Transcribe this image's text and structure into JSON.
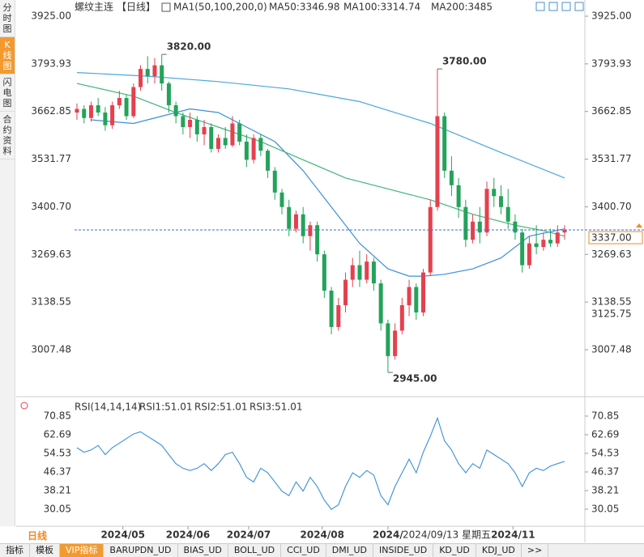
{
  "sidebar_tabs": [
    "分时图",
    "K线图",
    "闪电图",
    "合约资料"
  ],
  "period_label": "日线",
  "tabs": [
    "指标",
    "模板",
    "VIP指标",
    "BARUPDN_UD",
    "BIAS_UD",
    "BOLL_UD",
    "CCI_UD",
    "DMI_UD",
    "INSIDE_UD",
    "KD_UD",
    "KDJ_UD",
    ">>"
  ],
  "chart_data": [
    {
      "type": "candlestick",
      "title": "螺纹主连",
      "period": "【日线】",
      "indicator": "MA1(50,100,200,0)",
      "up_color": "#e5404f",
      "down_color": "#23a35a",
      "ylim": [
        2889.4,
        3929.5
      ],
      "yticks": [
        {
          "value": 3925,
          "label": "3925.00"
        },
        3793.93,
        3662.85,
        3531.77,
        {
          "value": 3400.7,
          "label": "3400.70"
        },
        3269.63,
        3138.55,
        3007.48
      ],
      "xlim": [
        -1,
        73
      ],
      "xticks": [
        {
          "value": 6.5,
          "label": "2024/05"
        },
        {
          "value": 15.7,
          "label": "2024/06"
        },
        {
          "value": 24.3,
          "label": "2024/07"
        },
        {
          "value": 34.7,
          "label": "2024/08"
        },
        {
          "value": 44,
          "label": "2024/"
        },
        {
          "value": 61.7,
          "label": "2024/11"
        }
      ],
      "ohlc": [
        [
          3660,
          3685,
          3640,
          3670
        ],
        [
          3670,
          3680,
          3630,
          3645
        ],
        [
          3645,
          3690,
          3635,
          3680
        ],
        [
          3680,
          3700,
          3650,
          3660
        ],
        [
          3660,
          3675,
          3610,
          3625
        ],
        [
          3625,
          3690,
          3615,
          3680
        ],
        [
          3680,
          3720,
          3670,
          3700
        ],
        [
          3700,
          3710,
          3640,
          3650
        ],
        [
          3650,
          3740,
          3645,
          3730
        ],
        [
          3730,
          3790,
          3720,
          3780
        ],
        [
          3780,
          3815,
          3740,
          3760
        ],
        [
          3760,
          3810,
          3740,
          3790
        ],
        [
          3790,
          3820,
          3720,
          3740
        ],
        [
          3740,
          3745,
          3660,
          3680
        ],
        [
          3680,
          3690,
          3630,
          3650
        ],
        [
          3650,
          3660,
          3600,
          3620
        ],
        [
          3620,
          3660,
          3590,
          3640
        ],
        [
          3640,
          3650,
          3580,
          3600
        ],
        [
          3600,
          3640,
          3570,
          3620
        ],
        [
          3620,
          3630,
          3550,
          3560
        ],
        [
          3560,
          3600,
          3550,
          3590
        ],
        [
          3590,
          3620,
          3560,
          3570
        ],
        [
          3570,
          3650,
          3565,
          3630
        ],
        [
          3630,
          3640,
          3570,
          3580
        ],
        [
          3580,
          3600,
          3510,
          3530
        ],
        [
          3530,
          3600,
          3520,
          3590
        ],
        [
          3590,
          3600,
          3540,
          3555
        ],
        [
          3555,
          3560,
          3480,
          3500
        ],
        [
          3500,
          3510,
          3420,
          3440
        ],
        [
          3440,
          3450,
          3380,
          3400
        ],
        [
          3400,
          3420,
          3320,
          3340
        ],
        [
          3340,
          3390,
          3330,
          3380
        ],
        [
          3380,
          3400,
          3300,
          3320
        ],
        [
          3320,
          3360,
          3280,
          3350
        ],
        [
          3350,
          3360,
          3250,
          3270
        ],
        [
          3270,
          3280,
          3150,
          3170
        ],
        [
          3170,
          3180,
          3050,
          3070
        ],
        [
          3070,
          3150,
          3060,
          3130
        ],
        [
          3130,
          3220,
          3110,
          3200
        ],
        [
          3200,
          3260,
          3180,
          3240
        ],
        [
          3240,
          3280,
          3180,
          3200
        ],
        [
          3200,
          3270,
          3190,
          3250
        ],
        [
          3250,
          3260,
          3170,
          3190
        ],
        [
          3190,
          3200,
          3060,
          3080
        ],
        [
          3080,
          3090,
          2945,
          2990
        ],
        [
          2990,
          3080,
          2980,
          3060
        ],
        [
          3060,
          3150,
          3050,
          3130
        ],
        [
          3130,
          3200,
          3100,
          3180
        ],
        [
          3180,
          3190,
          3090,
          3110
        ],
        [
          3110,
          3230,
          3100,
          3220
        ],
        [
          3220,
          3420,
          3210,
          3400
        ],
        [
          3400,
          3780,
          3390,
          3650
        ],
        [
          3650,
          3660,
          3480,
          3500
        ],
        [
          3500,
          3540,
          3430,
          3460
        ],
        [
          3460,
          3480,
          3370,
          3400
        ],
        [
          3400,
          3420,
          3290,
          3310
        ],
        [
          3310,
          3380,
          3300,
          3360
        ],
        [
          3360,
          3400,
          3300,
          3330
        ],
        [
          3330,
          3470,
          3320,
          3450
        ],
        [
          3450,
          3480,
          3400,
          3430
        ],
        [
          3430,
          3460,
          3380,
          3400
        ],
        [
          3400,
          3450,
          3340,
          3360
        ],
        [
          3360,
          3380,
          3310,
          3330
        ],
        [
          3330,
          3340,
          3220,
          3240
        ],
        [
          3240,
          3320,
          3230,
          3300
        ],
        [
          3300,
          3350,
          3270,
          3290
        ],
        [
          3290,
          3330,
          3280,
          3310
        ],
        [
          3310,
          3340,
          3290,
          3300
        ],
        [
          3300,
          3350,
          3290,
          3330
        ],
        [
          3330,
          3350,
          3310,
          3337
        ]
      ],
      "series": [
        {
          "name": "MA50:3346.98",
          "color": "#3b8fd9",
          "x": [
            2,
            8,
            12,
            16,
            20,
            24,
            28,
            32,
            36,
            40,
            44,
            47,
            49,
            52,
            56,
            60,
            64,
            69
          ],
          "values": [
            3640,
            3630,
            3650,
            3670,
            3660,
            3620,
            3580,
            3500,
            3400,
            3300,
            3230,
            3210,
            3210,
            3215,
            3230,
            3260,
            3320,
            3340
          ]
        },
        {
          "name": "MA100:3314.74",
          "color": "#3fb57a",
          "x": [
            0,
            8,
            14,
            20,
            26,
            32,
            38,
            44,
            50,
            56,
            62,
            66,
            69
          ],
          "values": [
            3740,
            3705,
            3660,
            3620,
            3580,
            3530,
            3480,
            3450,
            3420,
            3380,
            3350,
            3335,
            3320
          ]
        },
        {
          "name": "MA200:3485",
          "color": "#4aa7dc",
          "x": [
            0,
            10,
            20,
            30,
            40,
            50,
            60,
            69
          ],
          "values": [
            3770,
            3760,
            3745,
            3725,
            3690,
            3630,
            3550,
            3480
          ]
        }
      ],
      "annotations": [
        {
          "label": "3820.00",
          "value": 3820,
          "at": "high"
        },
        {
          "label": "3780.00",
          "value": 3780,
          "at": "high"
        },
        {
          "label": "2945.00",
          "value": 2945,
          "at": "low"
        }
      ],
      "last_price": {
        "value": 3337,
        "label": "3337.00"
      },
      "crosshair": {
        "value": 3125.75,
        "date": "2024/09/13 星期五"
      }
    },
    {
      "type": "line",
      "title": "RSI(14,14,14)",
      "ylim": [
        23.3,
        75.8
      ],
      "yticks": [
        70.85,
        62.69,
        54.53,
        46.37,
        38.21,
        30.05
      ],
      "series": [
        {
          "name": "RSI1:51.01",
          "color": "#3b8fd9",
          "values": [
            57,
            55,
            56,
            58,
            54,
            57,
            59,
            61,
            63,
            64,
            62,
            60,
            58,
            54,
            50,
            48,
            47,
            48,
            50,
            47,
            50,
            54,
            55,
            50,
            44,
            42,
            48,
            46,
            42,
            38,
            36,
            42,
            38,
            44,
            40,
            34,
            30,
            32,
            40,
            46,
            44,
            47,
            45,
            36,
            32,
            40,
            46,
            52,
            46,
            55,
            62,
            70,
            60,
            56,
            50,
            46,
            50,
            48,
            56,
            54,
            52,
            50,
            46,
            40,
            46,
            48,
            47,
            49,
            50,
            51
          ]
        }
      ],
      "legend": [
        {
          "name": "RSI2:51.01",
          "color": "#3fb57a"
        },
        {
          "name": "RSI3:51.01",
          "color": "#4aa7dc"
        }
      ]
    }
  ]
}
